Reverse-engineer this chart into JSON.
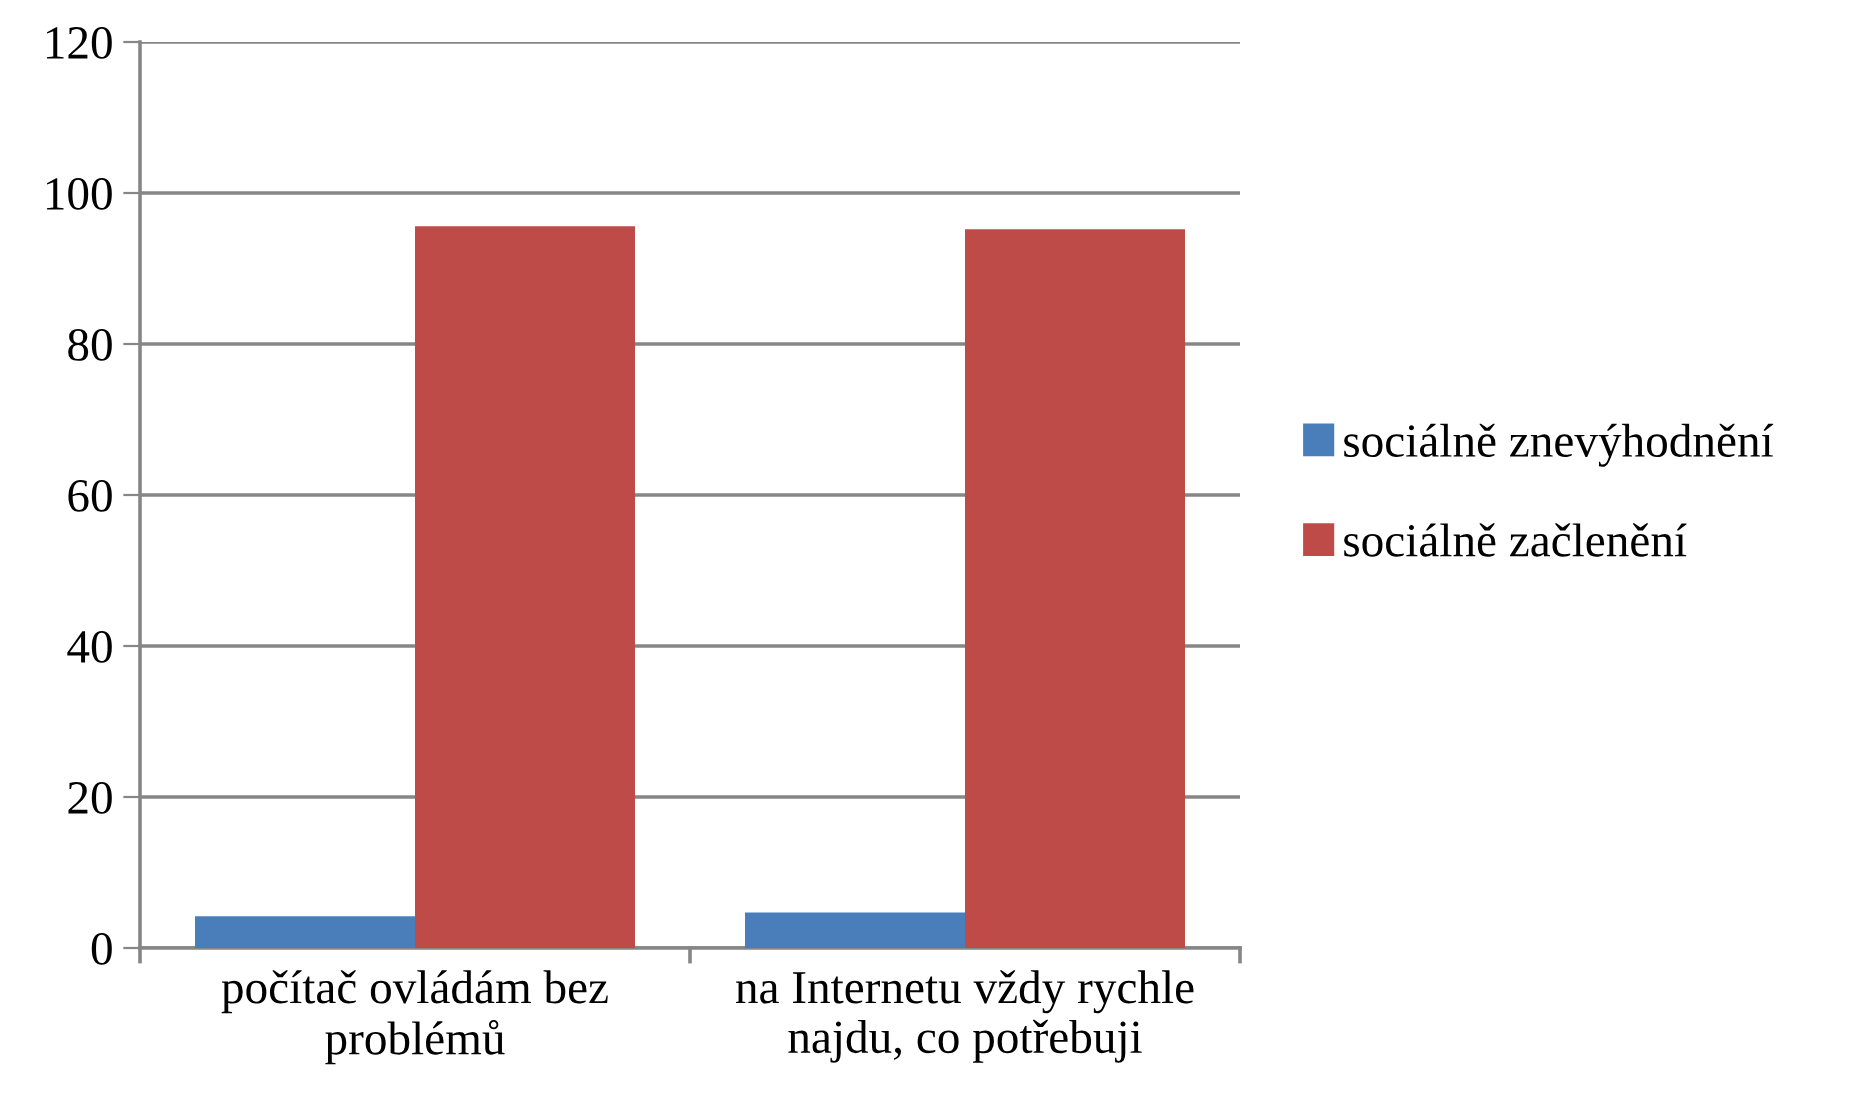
{
  "chart_data": {
    "type": "bar",
    "categories": [
      "počítač ovládám bez problémů",
      "na Internetu vždy rychle najdu, co potřebuji"
    ],
    "series": [
      {
        "name": "sociálně znevýhodnění",
        "color": "#4a7ebb",
        "values": [
          4.2,
          4.7
        ]
      },
      {
        "name": "sociálně začlenění",
        "color": "#be4b48",
        "values": [
          95.6,
          95.2
        ]
      }
    ],
    "ylim": [
      0,
      120
    ],
    "yticks": [
      0,
      20,
      40,
      60,
      80,
      100,
      120
    ],
    "grid": "y",
    "legend": "right"
  }
}
